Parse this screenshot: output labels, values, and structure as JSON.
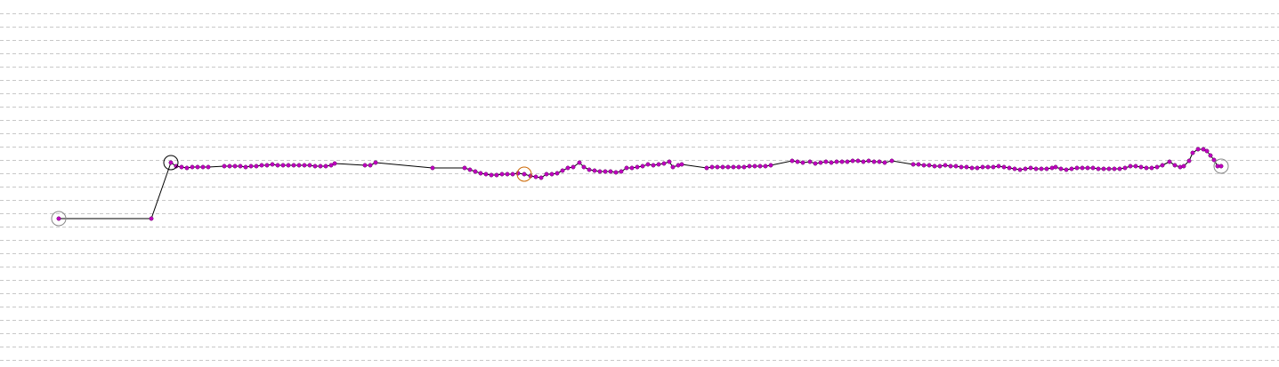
{
  "chart_data": {
    "type": "line",
    "x": [
      66,
      170,
      192,
      198,
      204,
      210,
      216,
      222,
      228,
      234,
      252,
      258,
      264,
      270,
      276,
      282,
      288,
      294,
      300,
      306,
      312,
      318,
      324,
      330,
      336,
      342,
      348,
      354,
      360,
      366,
      372,
      376,
      410,
      416,
      422,
      486,
      522,
      528,
      534,
      540,
      546,
      552,
      558,
      564,
      570,
      576,
      582,
      589,
      596,
      602,
      608,
      614,
      620,
      626,
      632,
      638,
      644,
      651,
      656,
      662,
      668,
      674,
      680,
      686,
      692,
      698,
      704,
      710,
      716,
      722,
      728,
      734,
      740,
      746,
      752,
      756,
      762,
      766,
      794,
      800,
      806,
      812,
      818,
      824,
      830,
      836,
      842,
      848,
      854,
      860,
      866,
      890,
      896,
      902,
      910,
      916,
      922,
      928,
      934,
      940,
      946,
      952,
      958,
      964,
      970,
      976,
      982,
      988,
      994,
      1002,
      1026,
      1032,
      1038,
      1044,
      1050,
      1056,
      1062,
      1068,
      1074,
      1080,
      1086,
      1092,
      1098,
      1104,
      1110,
      1116,
      1122,
      1128,
      1134,
      1140,
      1146,
      1152,
      1158,
      1164,
      1170,
      1176,
      1182,
      1186,
      1192,
      1198,
      1204,
      1210,
      1216,
      1222,
      1228,
      1234,
      1240,
      1246,
      1252,
      1258,
      1264,
      1270,
      1276,
      1282,
      1288,
      1294,
      1300,
      1306,
      1314,
      1320,
      1326,
      1330,
      1336,
      1340,
      1346,
      1352,
      1356,
      1360,
      1364,
      1368,
      1372
    ],
    "values": [
      246,
      246,
      183,
      187,
      188,
      189,
      188,
      188,
      188,
      188,
      187,
      187,
      187,
      187,
      188,
      187,
      187,
      186,
      186,
      185,
      186,
      186,
      186,
      186,
      186,
      186,
      186,
      187,
      187,
      187,
      186,
      184,
      186,
      186,
      183,
      189,
      189,
      191,
      193,
      195,
      196,
      197,
      197,
      196,
      196,
      196,
      195,
      196,
      198,
      199,
      200,
      196,
      196,
      195,
      192,
      189,
      188,
      183,
      188,
      191,
      192,
      193,
      193,
      193,
      194,
      193,
      189,
      189,
      188,
      187,
      185,
      186,
      185,
      184,
      182,
      188,
      186,
      185,
      189,
      188,
      188,
      188,
      188,
      188,
      188,
      188,
      187,
      187,
      187,
      187,
      186,
      181,
      182,
      183,
      182,
      184,
      183,
      182,
      183,
      182,
      182,
      182,
      181,
      181,
      182,
      181,
      182,
      182,
      183,
      181,
      185,
      185,
      186,
      186,
      187,
      187,
      186,
      187,
      187,
      188,
      188,
      189,
      189,
      188,
      188,
      188,
      187,
      188,
      189,
      190,
      191,
      190,
      189,
      190,
      190,
      190,
      189,
      188,
      190,
      191,
      190,
      189,
      189,
      189,
      189,
      190,
      190,
      190,
      190,
      190,
      189,
      187,
      187,
      188,
      189,
      189,
      188,
      186,
      182,
      186,
      188,
      187,
      181,
      172,
      168,
      168,
      170,
      175,
      180,
      187,
      187
    ],
    "color": "#000000",
    "marker_color": "#c000c0",
    "rings": [
      {
        "x": 66,
        "y": 246,
        "color": "#888888"
      },
      {
        "x": 192,
        "y": 183,
        "color": "#000000"
      },
      {
        "x": 589,
        "y": 196,
        "color": "#cc6600"
      },
      {
        "x": 1372,
        "y": 187,
        "color": "#888888"
      }
    ],
    "xlim": [
      0,
      1437
    ],
    "ylim": [
      413,
      0
    ],
    "yticks": [
      15,
      30,
      45,
      60,
      75,
      90,
      105,
      120,
      135,
      150,
      165,
      180,
      195,
      210,
      225,
      240,
      255,
      270,
      285,
      300,
      315,
      330,
      345,
      360,
      375,
      390,
      405
    ],
    "grid": true
  }
}
